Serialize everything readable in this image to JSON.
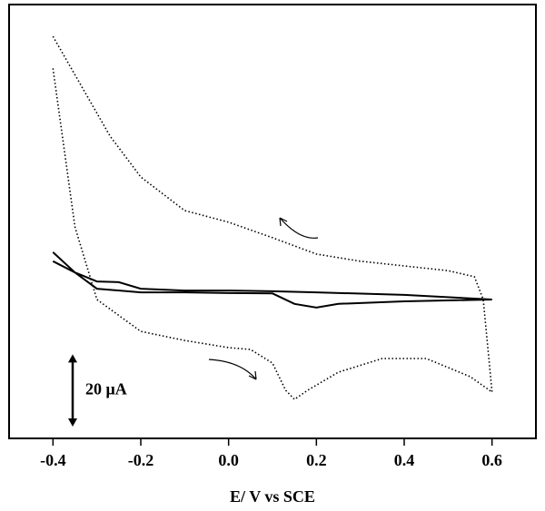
{
  "chart_data": {
    "type": "line",
    "x_label": "E/ V vs SCE",
    "xlim": [
      -0.5,
      0.7
    ],
    "xticks": [
      -0.4,
      -0.2,
      {
        "value": 0,
        "label": "0.0"
      },
      0.2,
      0.4,
      0.6
    ],
    "ylim": [
      -40,
      80
    ],
    "scale_bar": {
      "value": 20,
      "label": "20 μA"
    },
    "series": [
      {
        "color": "#000000",
        "style": "dotted",
        "x": [
          -0.4,
          -0.27,
          -0.2,
          -0.1,
          0,
          0.1,
          0.2,
          0.3,
          0.4,
          0.5,
          0.56,
          0.58,
          0.6,
          0.55,
          0.45,
          0.35,
          0.25,
          0.18,
          0.15,
          0.13,
          0.1,
          0.05,
          0,
          -0.1,
          -0.2,
          -0.3,
          -0.35,
          -0.4
        ],
        "values": [
          71.2,
          43.6,
          32.3,
          23.0,
          19.8,
          15.5,
          11.0,
          9.0,
          7.7,
          6.4,
          4.7,
          -1.6,
          -27.2,
          -22.9,
          -17.9,
          -17.9,
          -21.7,
          -26.7,
          -29.2,
          -26.7,
          -19.2,
          -15.4,
          -14.9,
          -12.9,
          -10.4,
          -1.6,
          18.5,
          62.4
        ]
      },
      {
        "color": "#000000",
        "style": "solid",
        "x": [
          -0.4,
          -0.35,
          -0.3,
          -0.25,
          -0.2,
          -0.1,
          0,
          0.1,
          0.2,
          0.4,
          0.6,
          0.4,
          0.25,
          0.2,
          0.15,
          0.1,
          0,
          -0.1,
          -0.2,
          -0.3,
          -0.35,
          -0.4
        ],
        "values": [
          11.5,
          5.9,
          3.4,
          3.2,
          1.4,
          0.9,
          0.9,
          0.7,
          0.4,
          -0.3,
          -1.6,
          -2.1,
          -2.8,
          -3.8,
          -2.8,
          0.1,
          0.2,
          0.4,
          0.4,
          1.4,
          5.9,
          9.0
        ]
      }
    ]
  }
}
